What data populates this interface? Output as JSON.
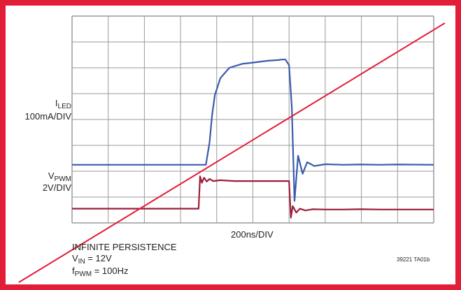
{
  "chart_data": {
    "type": "line",
    "title": "",
    "grid": true,
    "grid_divisions": {
      "x": 10,
      "y": 8
    },
    "xlabel": "200ns/DIV",
    "x_unit": "ns",
    "x_per_div": 200,
    "xlim": [
      0,
      2000
    ],
    "ylim_div": [
      0,
      8
    ],
    "series": [
      {
        "name": "I_LED",
        "label_main": "I",
        "label_sub": "LED",
        "scale_label": "100mA/DIV",
        "color": "#3a5bab",
        "x": [
          0,
          740,
          760,
          775,
          790,
          820,
          870,
          940,
          1000,
          1080,
          1140,
          1160,
          1180,
          1200,
          1215,
          1230,
          1250,
          1275,
          1300,
          1340,
          1400,
          1500,
          1600,
          1700,
          1800,
          2000
        ],
        "y_div": [
          2.25,
          2.25,
          3.1,
          4.2,
          4.95,
          5.6,
          6.0,
          6.15,
          6.2,
          6.27,
          6.3,
          6.32,
          6.32,
          6.1,
          4.5,
          0.85,
          2.6,
          1.9,
          2.35,
          2.2,
          2.27,
          2.25,
          2.26,
          2.25,
          2.26,
          2.25
        ]
      },
      {
        "name": "V_PWM",
        "label_main": "V",
        "label_sub": "PWM",
        "scale_label": "2V/DIV",
        "color": "#9c1d3a",
        "x": [
          0,
          700,
          708,
          718,
          730,
          745,
          760,
          780,
          820,
          900,
          1000,
          1100,
          1200,
          1210,
          1220,
          1240,
          1260,
          1290,
          1330,
          1400,
          1500,
          1600,
          1700,
          1800,
          2000
        ],
        "y_div": [
          0.55,
          0.55,
          1.8,
          1.55,
          1.75,
          1.6,
          1.7,
          1.62,
          1.65,
          1.62,
          1.62,
          1.62,
          1.62,
          0.2,
          0.65,
          0.4,
          0.55,
          0.48,
          0.53,
          0.52,
          0.52,
          0.53,
          0.52,
          0.52,
          0.52
        ]
      }
    ],
    "annotations": {
      "line1": "INFINITE PERSISTENCE",
      "line2_main": "V",
      "line2_sub": "IN",
      "line2_rest": " = 12V",
      "line3_main": "f",
      "line3_sub": "PWM",
      "line3_rest": " = 100Hz",
      "figure_id": "39221 TA01b"
    },
    "colors": {
      "border": "#e21d38",
      "grid": "#9a9a9a",
      "strike": "#e21d38"
    }
  }
}
